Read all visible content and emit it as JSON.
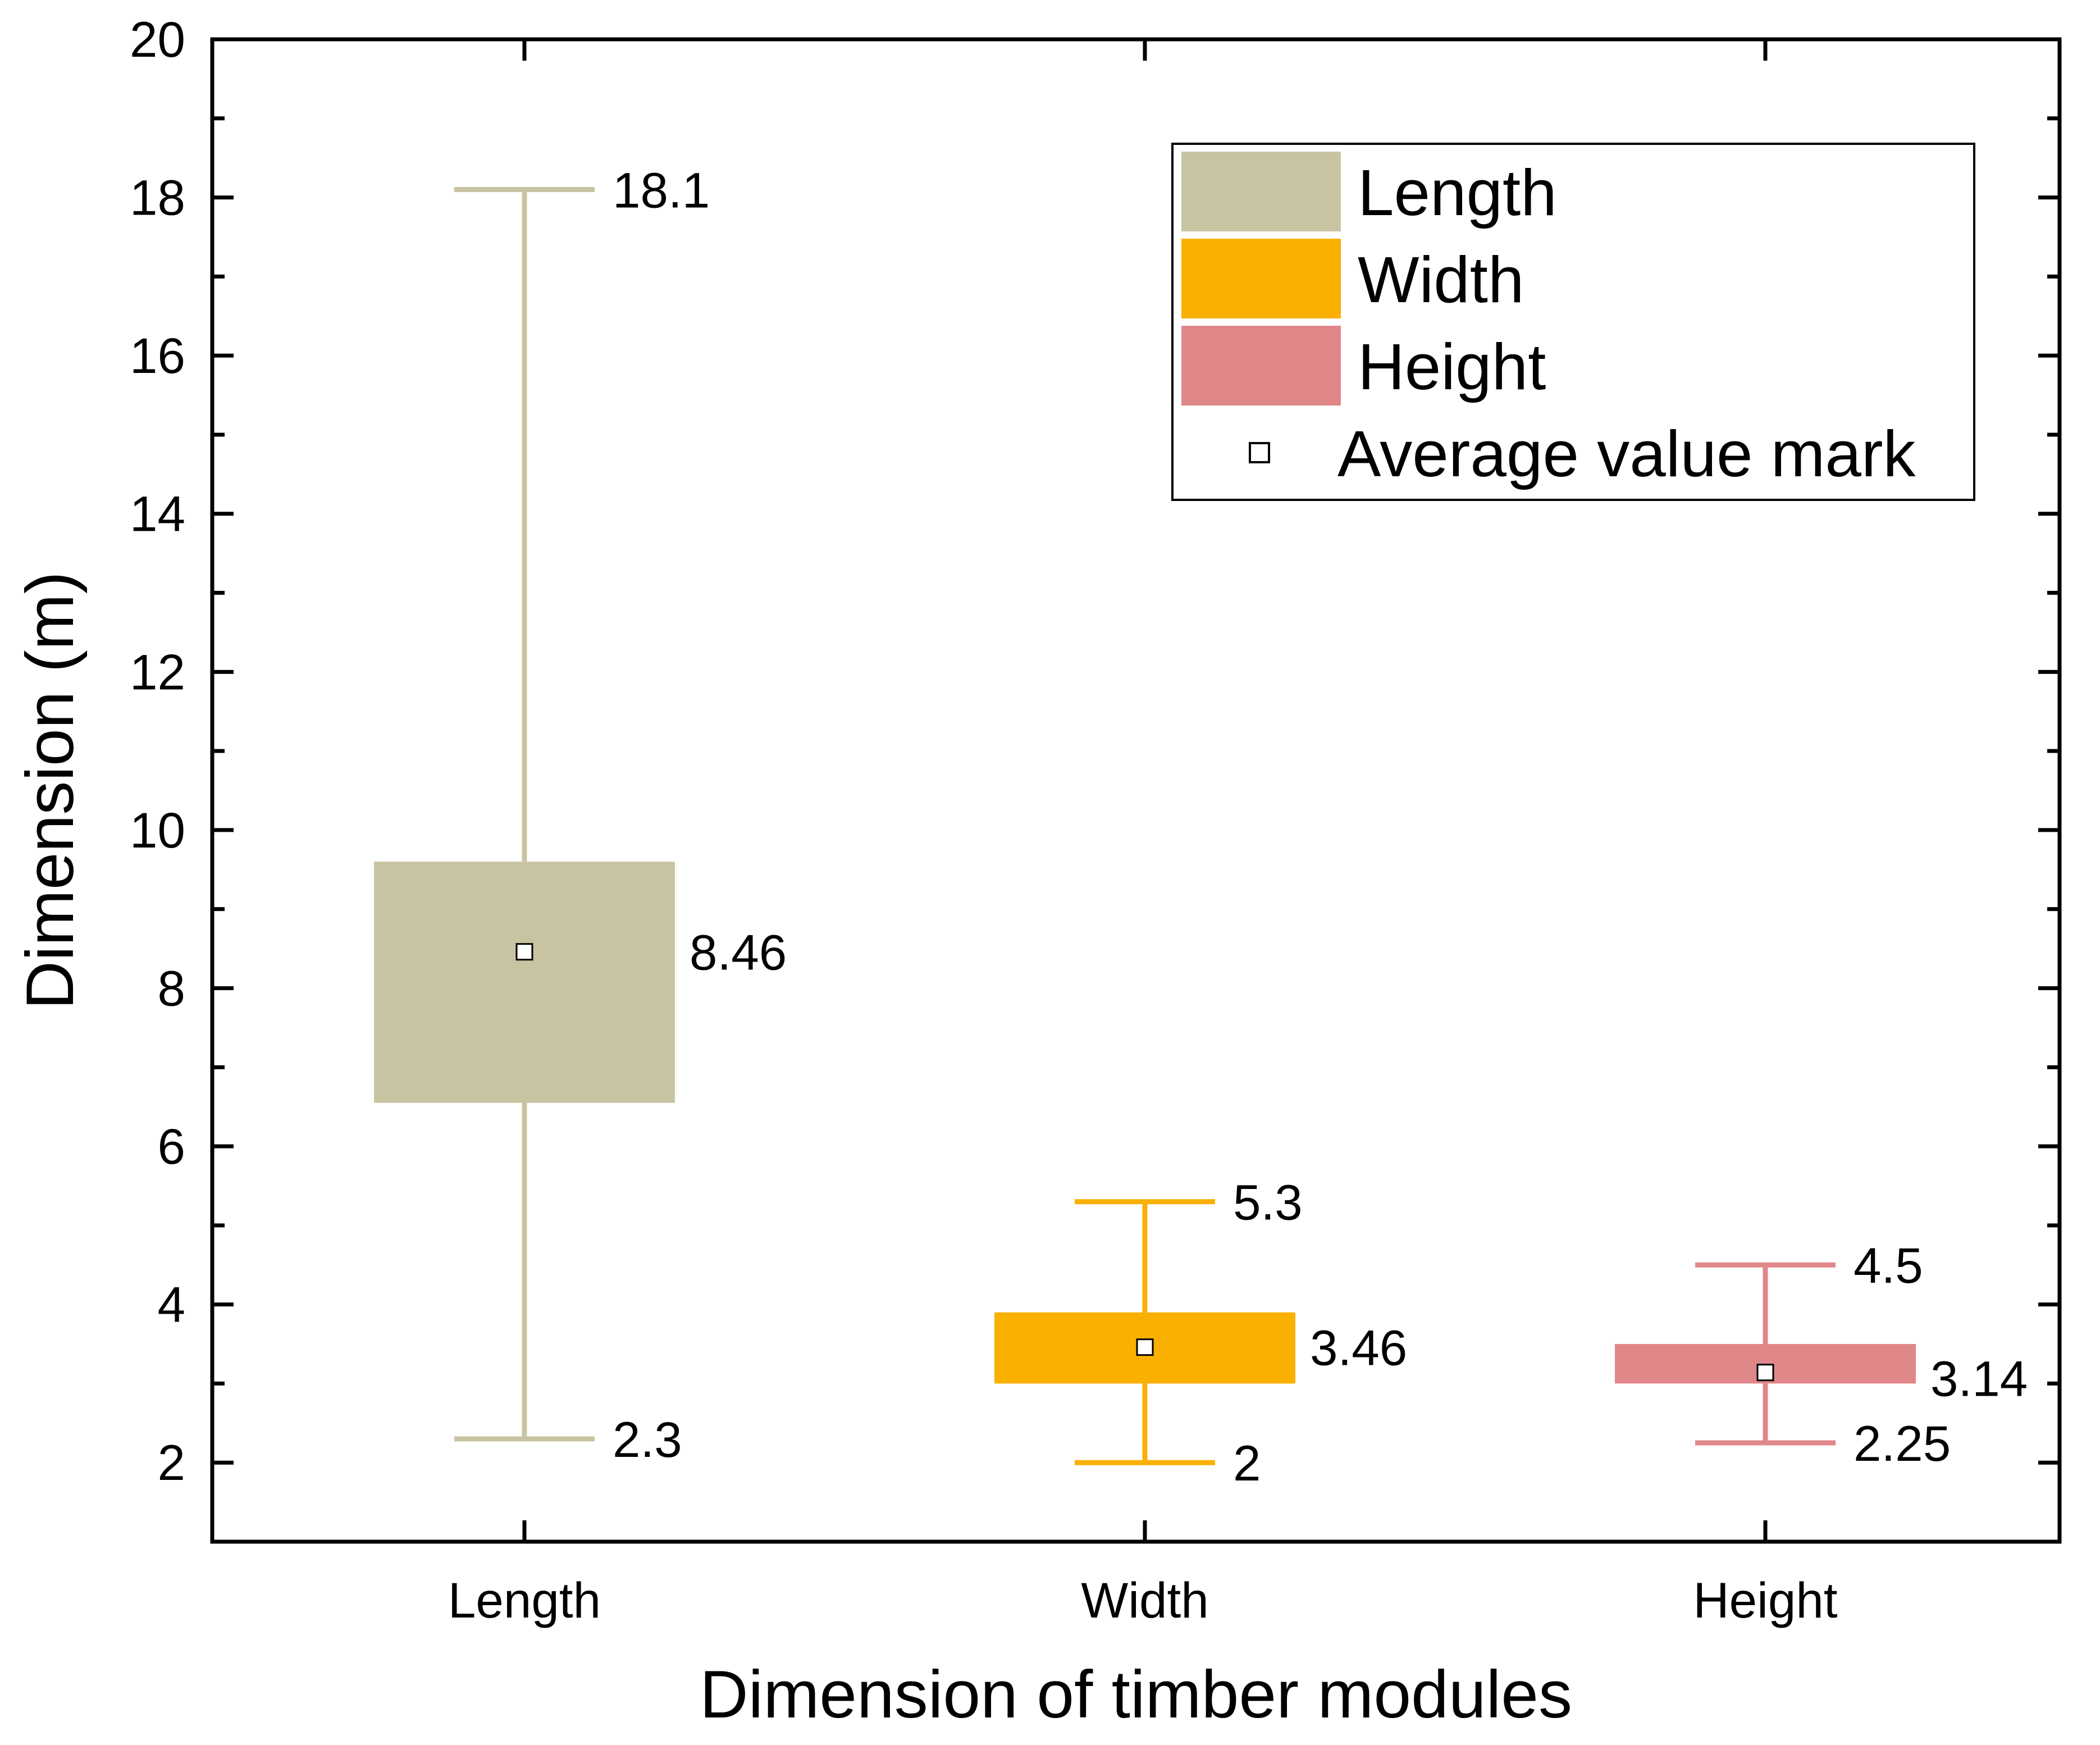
{
  "chart_data": {
    "type": "box",
    "xlabel": "Dimension of timber modules",
    "ylabel": "Dimension (m)",
    "ylim": [
      1,
      20
    ],
    "yticks": [
      2,
      4,
      6,
      8,
      10,
      12,
      14,
      16,
      18,
      20
    ],
    "categories": [
      "Length",
      "Width",
      "Height"
    ],
    "series": [
      {
        "name": "Length",
        "color": "#c8c4a2",
        "min": 2.3,
        "q1": 6.55,
        "q3": 9.6,
        "mean": 8.46,
        "max": 18.1,
        "labels": {
          "max": "18.1",
          "mean": "8.46",
          "min": "2.3"
        }
      },
      {
        "name": "Width",
        "color": "#f9b000",
        "min": 2.0,
        "q1": 3.0,
        "q3": 3.9,
        "mean": 3.46,
        "max": 5.3,
        "labels": {
          "max": "5.3",
          "mean": "3.46",
          "min": "2"
        }
      },
      {
        "name": "Height",
        "color": "#e0878a",
        "min": 2.25,
        "q1": 3.0,
        "q3": 3.5,
        "mean": 3.14,
        "max": 4.5,
        "labels": {
          "max": "4.5",
          "mean": "3.14",
          "min": "2.25"
        }
      }
    ],
    "legend": {
      "position": "top-right",
      "entries": [
        "Length",
        "Width",
        "Height"
      ],
      "mean_marker_label": "Average value mark"
    }
  }
}
